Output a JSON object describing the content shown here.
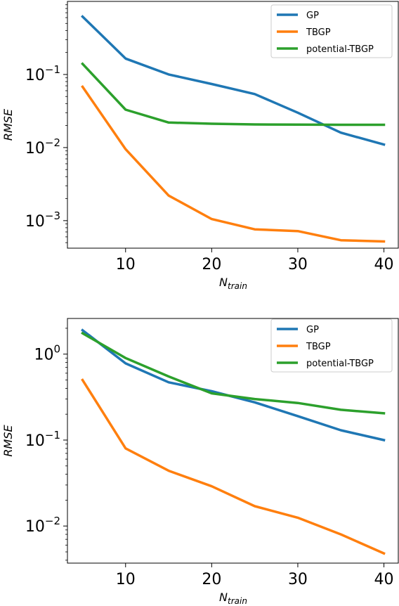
{
  "chart_data": [
    {
      "type": "line",
      "xlabel": "N",
      "xlabel_sub": "train",
      "ylabel": "RMSE",
      "yscale": "log",
      "xlim": [
        3.25,
        41.75
      ],
      "ylim": [
        0.00042,
        1.0
      ],
      "xticks": [
        10,
        20,
        30,
        40
      ],
      "yticks": [
        {
          "value": 0.1,
          "base": "10",
          "exp": "−1"
        },
        {
          "value": 0.01,
          "base": "10",
          "exp": "−2"
        },
        {
          "value": 0.001,
          "base": "10",
          "exp": "−3"
        }
      ],
      "legend_position": "top-right",
      "grid": false,
      "x": [
        5,
        10,
        15,
        20,
        25,
        30,
        35,
        40
      ],
      "series": [
        {
          "name": "GP",
          "color": "#1f77b4",
          "values": [
            0.62,
            0.165,
            0.1,
            0.074,
            0.054,
            0.03,
            0.016,
            0.011
          ]
        },
        {
          "name": "TBGP",
          "color": "#ff7f0e",
          "values": [
            0.068,
            0.0095,
            0.0022,
            0.00105,
            0.00076,
            0.00072,
            0.00054,
            0.00052
          ]
        },
        {
          "name": "potential-TBGP",
          "color": "#2ca02c",
          "values": [
            0.14,
            0.033,
            0.022,
            0.0212,
            0.0207,
            0.0206,
            0.0205,
            0.0205
          ]
        }
      ]
    },
    {
      "type": "line",
      "xlabel": "N",
      "xlabel_sub": "train",
      "ylabel": "RMSE",
      "yscale": "log",
      "xlim": [
        3.25,
        41.75
      ],
      "ylim": [
        0.0037,
        2.6
      ],
      "xticks": [
        10,
        20,
        30,
        40
      ],
      "yticks": [
        {
          "value": 1,
          "base": "10",
          "exp": "0"
        },
        {
          "value": 0.1,
          "base": "10",
          "exp": "−1"
        },
        {
          "value": 0.01,
          "base": "10",
          "exp": "−2"
        }
      ],
      "legend_position": "top-right",
      "grid": false,
      "x": [
        5,
        10,
        15,
        20,
        25,
        30,
        35,
        40
      ],
      "series": [
        {
          "name": "GP",
          "color": "#1f77b4",
          "values": [
            1.9,
            0.78,
            0.47,
            0.37,
            0.275,
            0.19,
            0.13,
            0.1
          ]
        },
        {
          "name": "TBGP",
          "color": "#ff7f0e",
          "values": [
            0.5,
            0.08,
            0.044,
            0.029,
            0.017,
            0.0125,
            0.008,
            0.0048
          ]
        },
        {
          "name": "potential-TBGP",
          "color": "#2ca02c",
          "values": [
            1.75,
            0.9,
            0.55,
            0.35,
            0.3,
            0.27,
            0.225,
            0.205
          ]
        }
      ]
    }
  ]
}
